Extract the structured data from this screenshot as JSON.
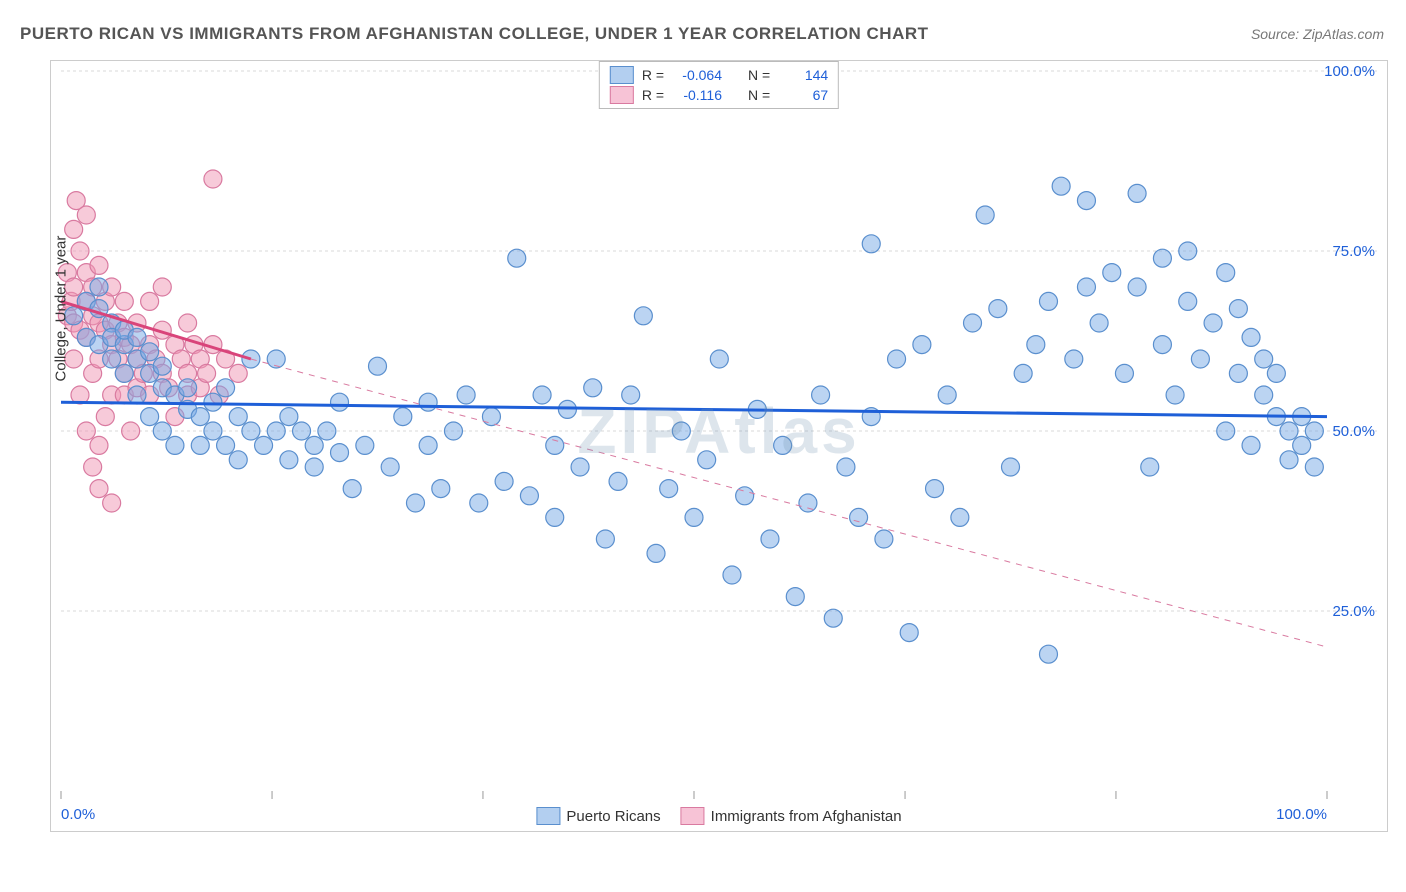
{
  "title": "PUERTO RICAN VS IMMIGRANTS FROM AFGHANISTAN COLLEGE, UNDER 1 YEAR CORRELATION CHART",
  "source": "Source: ZipAtlas.com",
  "watermark": "ZIPAtlas",
  "y_axis_label": "College, Under 1 year",
  "chart": {
    "type": "scatter",
    "xlim": [
      0,
      100
    ],
    "ylim": [
      0,
      100
    ],
    "x_ticks": [
      0,
      16.67,
      33.33,
      50,
      66.67,
      83.33,
      100
    ],
    "x_tick_labels_shown": {
      "0": "0.0%",
      "100": "100.0%"
    },
    "y_ticks": [
      25,
      50,
      75,
      100
    ],
    "y_tick_labels": {
      "25": "25.0%",
      "50": "50.0%",
      "75": "75.0%",
      "100": "100.0%"
    },
    "grid_color": "#d8d8d8",
    "background_color": "#ffffff",
    "tick_color": "#999999",
    "axis_label_color": "#1e5fd8",
    "series": [
      {
        "name": "Puerto Ricans",
        "color_fill": "rgba(120, 170, 230, 0.5)",
        "color_stroke": "#5a8fce",
        "swatch_fill": "#b3cff0",
        "swatch_border": "#5a8fce",
        "marker_radius": 9,
        "R": "-0.064",
        "N": "144",
        "trend_solid": {
          "x1": 0,
          "y1": 54,
          "x2": 100,
          "y2": 52,
          "color": "#1e5fd8",
          "width": 3
        },
        "points": [
          [
            1,
            66
          ],
          [
            2,
            68
          ],
          [
            2,
            63
          ],
          [
            3,
            67
          ],
          [
            3,
            62
          ],
          [
            3,
            70
          ],
          [
            4,
            65
          ],
          [
            4,
            60
          ],
          [
            4,
            63
          ],
          [
            5,
            62
          ],
          [
            5,
            58
          ],
          [
            5,
            64
          ],
          [
            6,
            60
          ],
          [
            6,
            55
          ],
          [
            6,
            63
          ],
          [
            7,
            58
          ],
          [
            7,
            52
          ],
          [
            7,
            61
          ],
          [
            8,
            56
          ],
          [
            8,
            50
          ],
          [
            8,
            59
          ],
          [
            9,
            55
          ],
          [
            9,
            48
          ],
          [
            10,
            53
          ],
          [
            10,
            56
          ],
          [
            11,
            52
          ],
          [
            11,
            48
          ],
          [
            12,
            50
          ],
          [
            12,
            54
          ],
          [
            13,
            48
          ],
          [
            13,
            56
          ],
          [
            14,
            52
          ],
          [
            14,
            46
          ],
          [
            15,
            50
          ],
          [
            15,
            60
          ],
          [
            16,
            48
          ],
          [
            17,
            50
          ],
          [
            17,
            60
          ],
          [
            18,
            46
          ],
          [
            18,
            52
          ],
          [
            19,
            50
          ],
          [
            20,
            48
          ],
          [
            20,
            45
          ],
          [
            21,
            50
          ],
          [
            22,
            47
          ],
          [
            22,
            54
          ],
          [
            23,
            42
          ],
          [
            24,
            48
          ],
          [
            25,
            59
          ],
          [
            26,
            45
          ],
          [
            27,
            52
          ],
          [
            28,
            40
          ],
          [
            29,
            54
          ],
          [
            29,
            48
          ],
          [
            30,
            42
          ],
          [
            31,
            50
          ],
          [
            32,
            55
          ],
          [
            33,
            40
          ],
          [
            34,
            52
          ],
          [
            35,
            43
          ],
          [
            36,
            74
          ],
          [
            37,
            41
          ],
          [
            38,
            55
          ],
          [
            39,
            48
          ],
          [
            39,
            38
          ],
          [
            40,
            53
          ],
          [
            41,
            45
          ],
          [
            42,
            56
          ],
          [
            43,
            35
          ],
          [
            44,
            43
          ],
          [
            45,
            55
          ],
          [
            46,
            66
          ],
          [
            47,
            33
          ],
          [
            48,
            42
          ],
          [
            49,
            50
          ],
          [
            50,
            38
          ],
          [
            51,
            46
          ],
          [
            52,
            60
          ],
          [
            53,
            30
          ],
          [
            54,
            41
          ],
          [
            55,
            53
          ],
          [
            56,
            35
          ],
          [
            57,
            48
          ],
          [
            58,
            27
          ],
          [
            59,
            40
          ],
          [
            60,
            55
          ],
          [
            61,
            24
          ],
          [
            62,
            45
          ],
          [
            63,
            38
          ],
          [
            64,
            52
          ],
          [
            64,
            76
          ],
          [
            65,
            35
          ],
          [
            66,
            60
          ],
          [
            67,
            22
          ],
          [
            68,
            62
          ],
          [
            69,
            42
          ],
          [
            70,
            55
          ],
          [
            71,
            38
          ],
          [
            72,
            65
          ],
          [
            73,
            80
          ],
          [
            74,
            67
          ],
          [
            75,
            45
          ],
          [
            76,
            58
          ],
          [
            77,
            62
          ],
          [
            78,
            68
          ],
          [
            78,
            19
          ],
          [
            79,
            84
          ],
          [
            80,
            60
          ],
          [
            81,
            70
          ],
          [
            81,
            82
          ],
          [
            82,
            65
          ],
          [
            83,
            72
          ],
          [
            84,
            58
          ],
          [
            85,
            70
          ],
          [
            85,
            83
          ],
          [
            86,
            45
          ],
          [
            87,
            62
          ],
          [
            87,
            74
          ],
          [
            88,
            55
          ],
          [
            89,
            68
          ],
          [
            89,
            75
          ],
          [
            90,
            60
          ],
          [
            91,
            65
          ],
          [
            92,
            50
          ],
          [
            92,
            72
          ],
          [
            93,
            58
          ],
          [
            93,
            67
          ],
          [
            94,
            63
          ],
          [
            94,
            48
          ],
          [
            95,
            55
          ],
          [
            95,
            60
          ],
          [
            96,
            52
          ],
          [
            96,
            58
          ],
          [
            97,
            50
          ],
          [
            97,
            46
          ],
          [
            98,
            48
          ],
          [
            98,
            52
          ],
          [
            99,
            45
          ],
          [
            99,
            50
          ]
        ]
      },
      {
        "name": "Immigrants from Afghanistan",
        "color_fill": "rgba(240, 150, 180, 0.5)",
        "color_stroke": "#d97aa0",
        "swatch_fill": "#f7c3d6",
        "swatch_border": "#d97aa0",
        "marker_radius": 9,
        "R": "-0.116",
        "N": "67",
        "trend_solid": {
          "x1": 0,
          "y1": 68,
          "x2": 15,
          "y2": 60,
          "color": "#d9447a",
          "width": 3
        },
        "trend_dashed": {
          "x1": 15,
          "y1": 60,
          "x2": 100,
          "y2": 20,
          "color": "#d97aa0",
          "width": 1
        },
        "points": [
          [
            0.5,
            66
          ],
          [
            0.5,
            72
          ],
          [
            0.8,
            68
          ],
          [
            1,
            65
          ],
          [
            1,
            78
          ],
          [
            1,
            60
          ],
          [
            1,
            70
          ],
          [
            1.2,
            82
          ],
          [
            1.5,
            64
          ],
          [
            1.5,
            75
          ],
          [
            1.5,
            55
          ],
          [
            2,
            68
          ],
          [
            2,
            72
          ],
          [
            2,
            63
          ],
          [
            2,
            80
          ],
          [
            2,
            50
          ],
          [
            2.5,
            66
          ],
          [
            2.5,
            70
          ],
          [
            2.5,
            58
          ],
          [
            2.5,
            45
          ],
          [
            3,
            65
          ],
          [
            3,
            73
          ],
          [
            3,
            60
          ],
          [
            3,
            48
          ],
          [
            3,
            42
          ],
          [
            3.5,
            64
          ],
          [
            3.5,
            68
          ],
          [
            3.5,
            52
          ],
          [
            4,
            62
          ],
          [
            4,
            70
          ],
          [
            4,
            55
          ],
          [
            4,
            40
          ],
          [
            4.5,
            60
          ],
          [
            4.5,
            65
          ],
          [
            5,
            58
          ],
          [
            5,
            63
          ],
          [
            5,
            68
          ],
          [
            5,
            55
          ],
          [
            5.5,
            62
          ],
          [
            5.5,
            50
          ],
          [
            6,
            60
          ],
          [
            6,
            65
          ],
          [
            6,
            56
          ],
          [
            6.5,
            58
          ],
          [
            7,
            62
          ],
          [
            7,
            68
          ],
          [
            7,
            55
          ],
          [
            7.5,
            60
          ],
          [
            8,
            58
          ],
          [
            8,
            64
          ],
          [
            8,
            70
          ],
          [
            8.5,
            56
          ],
          [
            9,
            62
          ],
          [
            9,
            52
          ],
          [
            9.5,
            60
          ],
          [
            10,
            58
          ],
          [
            10,
            65
          ],
          [
            10,
            55
          ],
          [
            10.5,
            62
          ],
          [
            11,
            56
          ],
          [
            11,
            60
          ],
          [
            11.5,
            58
          ],
          [
            12,
            62
          ],
          [
            12,
            85
          ],
          [
            12.5,
            55
          ],
          [
            13,
            60
          ],
          [
            14,
            58
          ]
        ]
      }
    ]
  },
  "bottom_legend": [
    {
      "label": "Puerto Ricans"
    },
    {
      "label": "Immigrants from Afghanistan"
    }
  ]
}
